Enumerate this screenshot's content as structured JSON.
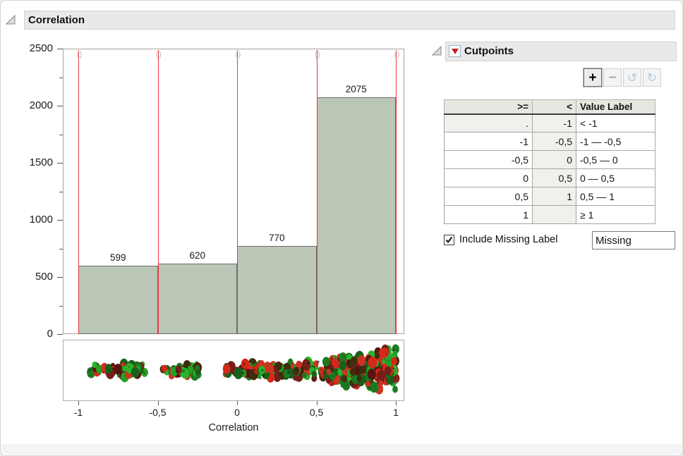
{
  "outline": {
    "correlation_label": "Correlation",
    "cutpoints_label": "Cutpoints"
  },
  "chart_data": {
    "type": "bar",
    "subtype": "histogram-with-cutpoints",
    "title": "Correlation",
    "xlabel": "Correlation",
    "ylabel": "",
    "ylim": [
      0,
      2500
    ],
    "y_major_ticks": [
      0,
      500,
      1000,
      1500,
      2000,
      2500
    ],
    "y_minor_step": 250,
    "x_ticks": [
      -1,
      -0.5,
      0,
      0.5,
      1
    ],
    "x_tick_labels": [
      "-1",
      "-0,5",
      "0",
      "0,5",
      "1"
    ],
    "bins": [
      {
        "x0": -1.0,
        "x1": -0.5,
        "count": 599
      },
      {
        "x0": -0.5,
        "x1": 0.0,
        "count": 620
      },
      {
        "x0": 0.0,
        "x1": 0.5,
        "count": 770
      },
      {
        "x0": 0.5,
        "x1": 1.0,
        "count": 2075
      }
    ],
    "cutpoints": [
      -1,
      -0.5,
      0,
      0.5,
      1
    ],
    "bar_fill": "#bac6b6",
    "bar_border": "#6e6e6e",
    "cutline_color": "#ee3348",
    "grid": false,
    "jitter": {
      "palette": [
        "#d62719",
        "#cc3322",
        "#23a123",
        "#2bb32b",
        "#18611b",
        "#571510",
        "#3f2d0e",
        "#742019",
        "#1b7a1f"
      ],
      "glyphs": [
        "+",
        "x",
        "^",
        "-"
      ],
      "glyph_color": "#141414",
      "clusters": [
        {
          "x0": -0.93,
          "x1": -0.58,
          "n": 60,
          "s0": 10,
          "s1": 11
        },
        {
          "x0": -0.47,
          "x1": -0.24,
          "n": 42,
          "s0": 9,
          "s1": 11
        },
        {
          "x0": -0.1,
          "x1": 0.5,
          "n": 115,
          "s0": 7,
          "s1": 17
        },
        {
          "x0": 0.52,
          "x1": 1.0,
          "n": 300,
          "s0": 17,
          "s1": 34
        }
      ]
    }
  },
  "cutpoints_panel": {
    "title": "Cutpoints",
    "toolbar": {
      "add": "+",
      "remove": "−",
      "undo": "↺",
      "redo": "↻"
    },
    "table": {
      "headers": [
        ">=",
        "<",
        "Value Label"
      ],
      "rows": [
        {
          "ge": ".",
          "lt": "-1",
          "label": "< -1",
          "ge_readonly": true
        },
        {
          "ge": "-1",
          "lt": "-0,5",
          "label": "-1 — -0,5",
          "ge_readonly": false
        },
        {
          "ge": "-0,5",
          "lt": "0",
          "label": "-0,5 — 0",
          "ge_readonly": false
        },
        {
          "ge": "0",
          "lt": "0,5",
          "label": "0 — 0,5",
          "ge_readonly": false
        },
        {
          "ge": "0,5",
          "lt": "1",
          "label": "0,5 — 1",
          "ge_readonly": false
        },
        {
          "ge": "1",
          "lt": "",
          "label": "≥ 1",
          "ge_readonly": false
        }
      ]
    },
    "missing": {
      "checkbox_label": "Include Missing Label",
      "checked": true,
      "value": "Missing"
    }
  }
}
